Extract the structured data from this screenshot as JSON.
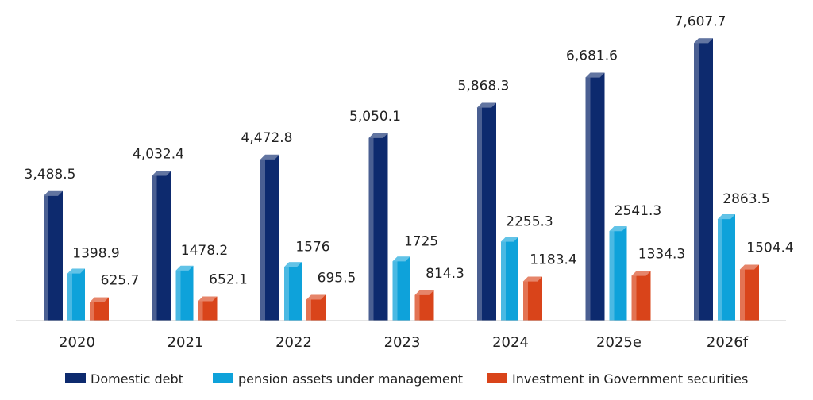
{
  "chart_data": {
    "type": "bar",
    "title": "",
    "xlabel": "",
    "ylabel": "",
    "ylim": [
      0,
      8000
    ],
    "grid": false,
    "legend_position": "bottom",
    "categories": [
      "2020",
      "2021",
      "2022",
      "2023",
      "2024",
      "2025e",
      "2026f"
    ],
    "series": [
      {
        "name": "Domestic debt",
        "color": "#0d2a6e",
        "values": [
          3488.5,
          4032.4,
          4472.8,
          5050.1,
          5868.3,
          6681.6,
          7607.7
        ],
        "labels": [
          "3,488.5",
          "4,032.4",
          "4,472.8",
          "5,050.1",
          "5,868.3",
          "6,681.6",
          "7,607.7"
        ]
      },
      {
        "name": "pension assets under management",
        "color": "#0ea2da",
        "values": [
          1398.9,
          1478.2,
          1576,
          1725,
          2255.3,
          2541.3,
          2863.5
        ],
        "labels": [
          "1398.9",
          "1478.2",
          "1576",
          "1725",
          "2255.3",
          "2541.3",
          "2863.5"
        ]
      },
      {
        "name": "Investment in Government securities",
        "color": "#d9441a",
        "values": [
          625.7,
          652.1,
          695.5,
          814.3,
          1183.4,
          1334.3,
          1504.4
        ],
        "labels": [
          "625.7",
          "652.1",
          "695.5",
          "814.3",
          "1183.4",
          "1334.3",
          "1504.4"
        ]
      }
    ]
  }
}
